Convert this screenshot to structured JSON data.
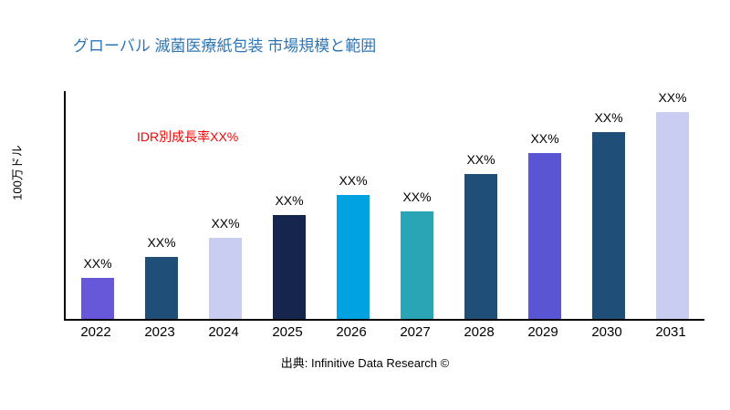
{
  "header": {
    "title": "グローバル 滅菌医療紙包装 市場規模と範囲"
  },
  "annotation": {
    "growth_note": "IDR別成長率XX%",
    "color": "#FF0000"
  },
  "footer": {
    "source": "出典: Infinitive Data Research ©"
  },
  "colors": {
    "title": "#2E75B6",
    "axis": "#000000"
  },
  "chart_data": {
    "type": "bar",
    "title": "グローバル 滅菌医療紙包装 市場規模と範囲",
    "xlabel": "",
    "ylabel": "100万ドル",
    "categories": [
      "2022",
      "2023",
      "2024",
      "2025",
      "2026",
      "2027",
      "2028",
      "2029",
      "2030",
      "2031"
    ],
    "values": [
      20,
      30,
      39,
      50,
      60,
      52,
      70,
      80,
      90,
      100
    ],
    "bar_labels": [
      "XX%",
      "XX%",
      "XX%",
      "XX%",
      "XX%",
      "XX%",
      "XX%",
      "XX%",
      "XX%",
      "XX%"
    ],
    "bar_colors": [
      "#6658D8",
      "#1F4E79",
      "#C9CDF2",
      "#16254E",
      "#00A3E0",
      "#2AA5B5",
      "#1F4E79",
      "#5A55D2",
      "#1F4E79",
      "#C9CDF2"
    ],
    "ylim": [
      0,
      110
    ],
    "grid": false,
    "legend": "none",
    "value_note": "Bar values shown as placeholder percentages (XX%); heights estimated from pixels on 0–110 relative scale"
  }
}
